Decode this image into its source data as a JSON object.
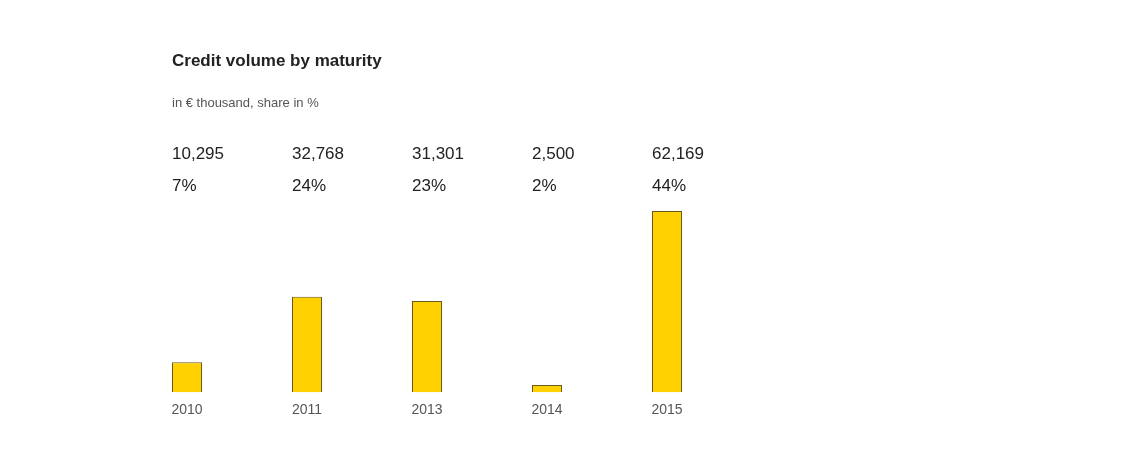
{
  "chart_data": {
    "type": "bar",
    "title": "Credit volume by maturity",
    "subtitle": "in € thousand, share in %",
    "categories": [
      "2010",
      "2011",
      "2013",
      "2014",
      "2015"
    ],
    "values": [
      10295,
      32768,
      31301,
      2500,
      62169
    ],
    "value_labels": [
      "10,295",
      "32,768",
      "31,301",
      "2,500",
      "62,169"
    ],
    "color": "#ffd100",
    "annotations": [
      "7%",
      "24%",
      "23%",
      "2%",
      "44%"
    ],
    "grid": false,
    "legend": false,
    "tick_labels": "x"
  }
}
